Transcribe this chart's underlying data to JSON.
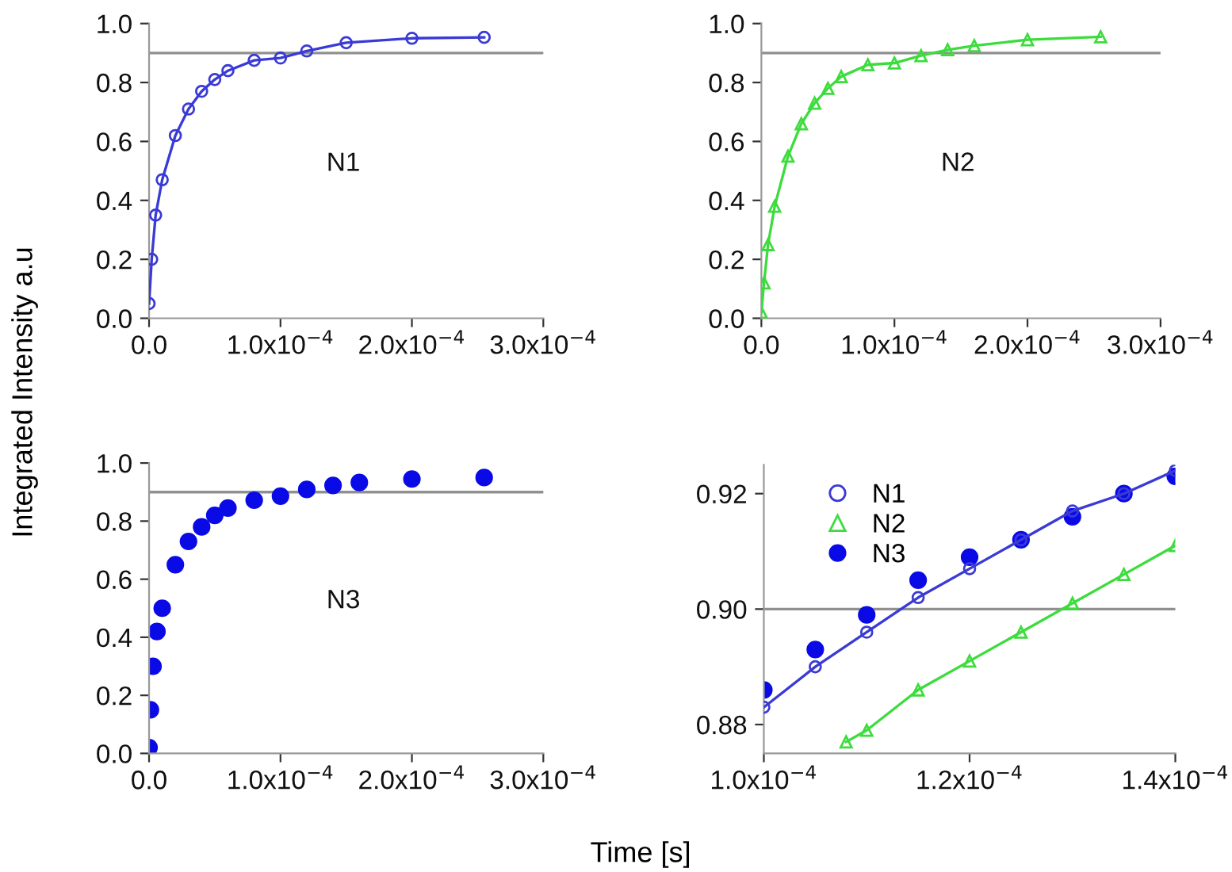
{
  "chart_data": [
    {
      "type": "line",
      "ylabel": "Integrated Intensity a.u",
      "annotations": [
        "N1"
      ],
      "marker": "circle",
      "xlim": [
        0,
        0.0003
      ],
      "ylim": [
        0,
        1.0
      ],
      "xticks": [
        {
          "value": 0,
          "label": "0.0"
        },
        {
          "value": 0.0001,
          "label": "1.0x10$^{−4}$"
        },
        {
          "value": 0.0002,
          "label": "2.0x10$^{−4}$"
        },
        {
          "value": 0.0003,
          "label": "3.0x10$^{−4}$"
        }
      ],
      "yticks": [
        {
          "value": 0,
          "label": "0.0"
        },
        0.2,
        0.4,
        0.6,
        0.8,
        {
          "value": 1.0,
          "label": "1.0"
        }
      ],
      "ref_lines": [
        {
          "axis": "y",
          "value": 0.9,
          "color": "#909090"
        }
      ],
      "series": [
        {
          "color": "#3a3ad6",
          "x": [
            0,
            2e-06,
            5e-06,
            1e-05,
            2e-05,
            3e-05,
            4e-05,
            5e-05,
            6e-05,
            8e-05,
            0.0001,
            0.00012,
            0.00015,
            0.0002,
            0.000255
          ],
          "values": [
            0.05,
            0.2,
            0.35,
            0.47,
            0.62,
            0.71,
            0.77,
            0.81,
            0.84,
            0.875,
            0.883,
            0.907,
            0.935,
            0.95,
            0.953
          ]
        }
      ]
    },
    {
      "type": "line",
      "annotations": [
        "N2"
      ],
      "marker": "triangle",
      "xlim": [
        0,
        0.0003
      ],
      "ylim": [
        0,
        1.0
      ],
      "xticks": [
        {
          "value": 0,
          "label": "0.0"
        },
        {
          "value": 0.0001,
          "label": "1.0x10$^{−4}$"
        },
        {
          "value": 0.0002,
          "label": "2.0x10$^{−4}$"
        },
        {
          "value": 0.0003,
          "label": "3.0x10$^{−4}$"
        }
      ],
      "yticks": [
        {
          "value": 0,
          "label": "0.0"
        },
        0.2,
        0.4,
        0.6,
        0.8,
        {
          "value": 1.0,
          "label": "1.0"
        }
      ],
      "ref_lines": [
        {
          "axis": "y",
          "value": 0.9,
          "color": "#909090"
        }
      ],
      "series": [
        {
          "color": "#3ddc3d",
          "x": [
            0,
            2e-06,
            5e-06,
            1e-05,
            2e-05,
            3e-05,
            4e-05,
            5e-05,
            6e-05,
            8e-05,
            0.0001,
            0.00012,
            0.00014,
            0.00016,
            0.0002,
            0.000255
          ],
          "values": [
            0.02,
            0.12,
            0.25,
            0.38,
            0.55,
            0.66,
            0.73,
            0.78,
            0.82,
            0.86,
            0.866,
            0.891,
            0.911,
            0.925,
            0.945,
            0.955
          ]
        }
      ]
    },
    {
      "type": "line",
      "annotations": [
        "N3"
      ],
      "marker": "circle",
      "xlim": [
        0,
        0.0003
      ],
      "ylim": [
        0,
        1.0
      ],
      "xticks": [
        {
          "value": 0,
          "label": "0.0"
        },
        {
          "value": 0.0001,
          "label": "1.0x10$^{−4}$"
        },
        {
          "value": 0.0002,
          "label": "2.0x10$^{−4}$"
        },
        {
          "value": 0.0003,
          "label": "3.0x10$^{−4}$"
        }
      ],
      "yticks": [
        {
          "value": 0,
          "label": "0.0"
        },
        0.2,
        0.4,
        0.6,
        0.8,
        {
          "value": 1.0,
          "label": "1.0"
        }
      ],
      "ref_lines": [
        {
          "axis": "y",
          "value": 0.9,
          "color": "#909090"
        }
      ],
      "series": [
        {
          "type": "scatter",
          "color": "#0a0ae6",
          "x": [
            0,
            1e-06,
            3e-06,
            6e-06,
            1e-05,
            2e-05,
            3e-05,
            4e-05,
            5e-05,
            6e-05,
            8e-05,
            0.0001,
            0.00012,
            0.00014,
            0.00016,
            0.0002,
            0.000255
          ],
          "values": [
            0.02,
            0.15,
            0.3,
            0.42,
            0.5,
            0.65,
            0.73,
            0.78,
            0.82,
            0.845,
            0.872,
            0.886,
            0.909,
            0.923,
            0.933,
            0.945,
            0.95
          ]
        }
      ]
    },
    {
      "type": "line",
      "xlabel": "Time [s]",
      "legend": "top left",
      "xlim": [
        0.0001,
        0.00014
      ],
      "ylim": [
        0.875,
        0.925
      ],
      "xticks": [
        {
          "value": 0.0001,
          "label": "1.0x10$^{−4}$"
        },
        {
          "value": 0.00012,
          "label": "1.2x10$^{−4}$"
        },
        {
          "value": 0.00014,
          "label": "1.4x10$^{−4}$"
        }
      ],
      "yticks": [
        {
          "value": 0.88,
          "label": "0.88"
        },
        {
          "value": 0.9,
          "label": "0.90"
        },
        {
          "value": 0.92,
          "label": "0.92"
        }
      ],
      "ref_lines": [
        {
          "axis": "y",
          "value": 0.9,
          "color": "#909090"
        }
      ],
      "series": [
        {
          "name": "N1",
          "color": "#3a3ad6",
          "marker": "circle",
          "x": [
            0.0001,
            0.000105,
            0.00011,
            0.000115,
            0.00012,
            0.000125,
            0.00013,
            0.000135,
            0.00014
          ],
          "values": [
            0.883,
            0.89,
            0.896,
            0.902,
            0.907,
            0.912,
            0.917,
            0.92,
            0.924
          ]
        },
        {
          "name": "N2",
          "color": "#3ddc3d",
          "marker": "triangle",
          "x": [
            0.000108,
            0.00011,
            0.000115,
            0.00012,
            0.000125,
            0.00013,
            0.000135,
            0.00014
          ],
          "values": [
            0.877,
            0.879,
            0.886,
            0.891,
            0.896,
            0.901,
            0.906,
            0.911
          ]
        },
        {
          "name": "N3",
          "color": "#0a0ae6",
          "marker": "circle",
          "type": "scatter",
          "x": [
            0.0001,
            0.000105,
            0.00011,
            0.000115,
            0.00012,
            0.000125,
            0.00013,
            0.000135,
            0.00014
          ],
          "values": [
            0.886,
            0.893,
            0.899,
            0.905,
            0.909,
            0.912,
            0.916,
            0.92,
            0.923
          ]
        }
      ]
    }
  ]
}
